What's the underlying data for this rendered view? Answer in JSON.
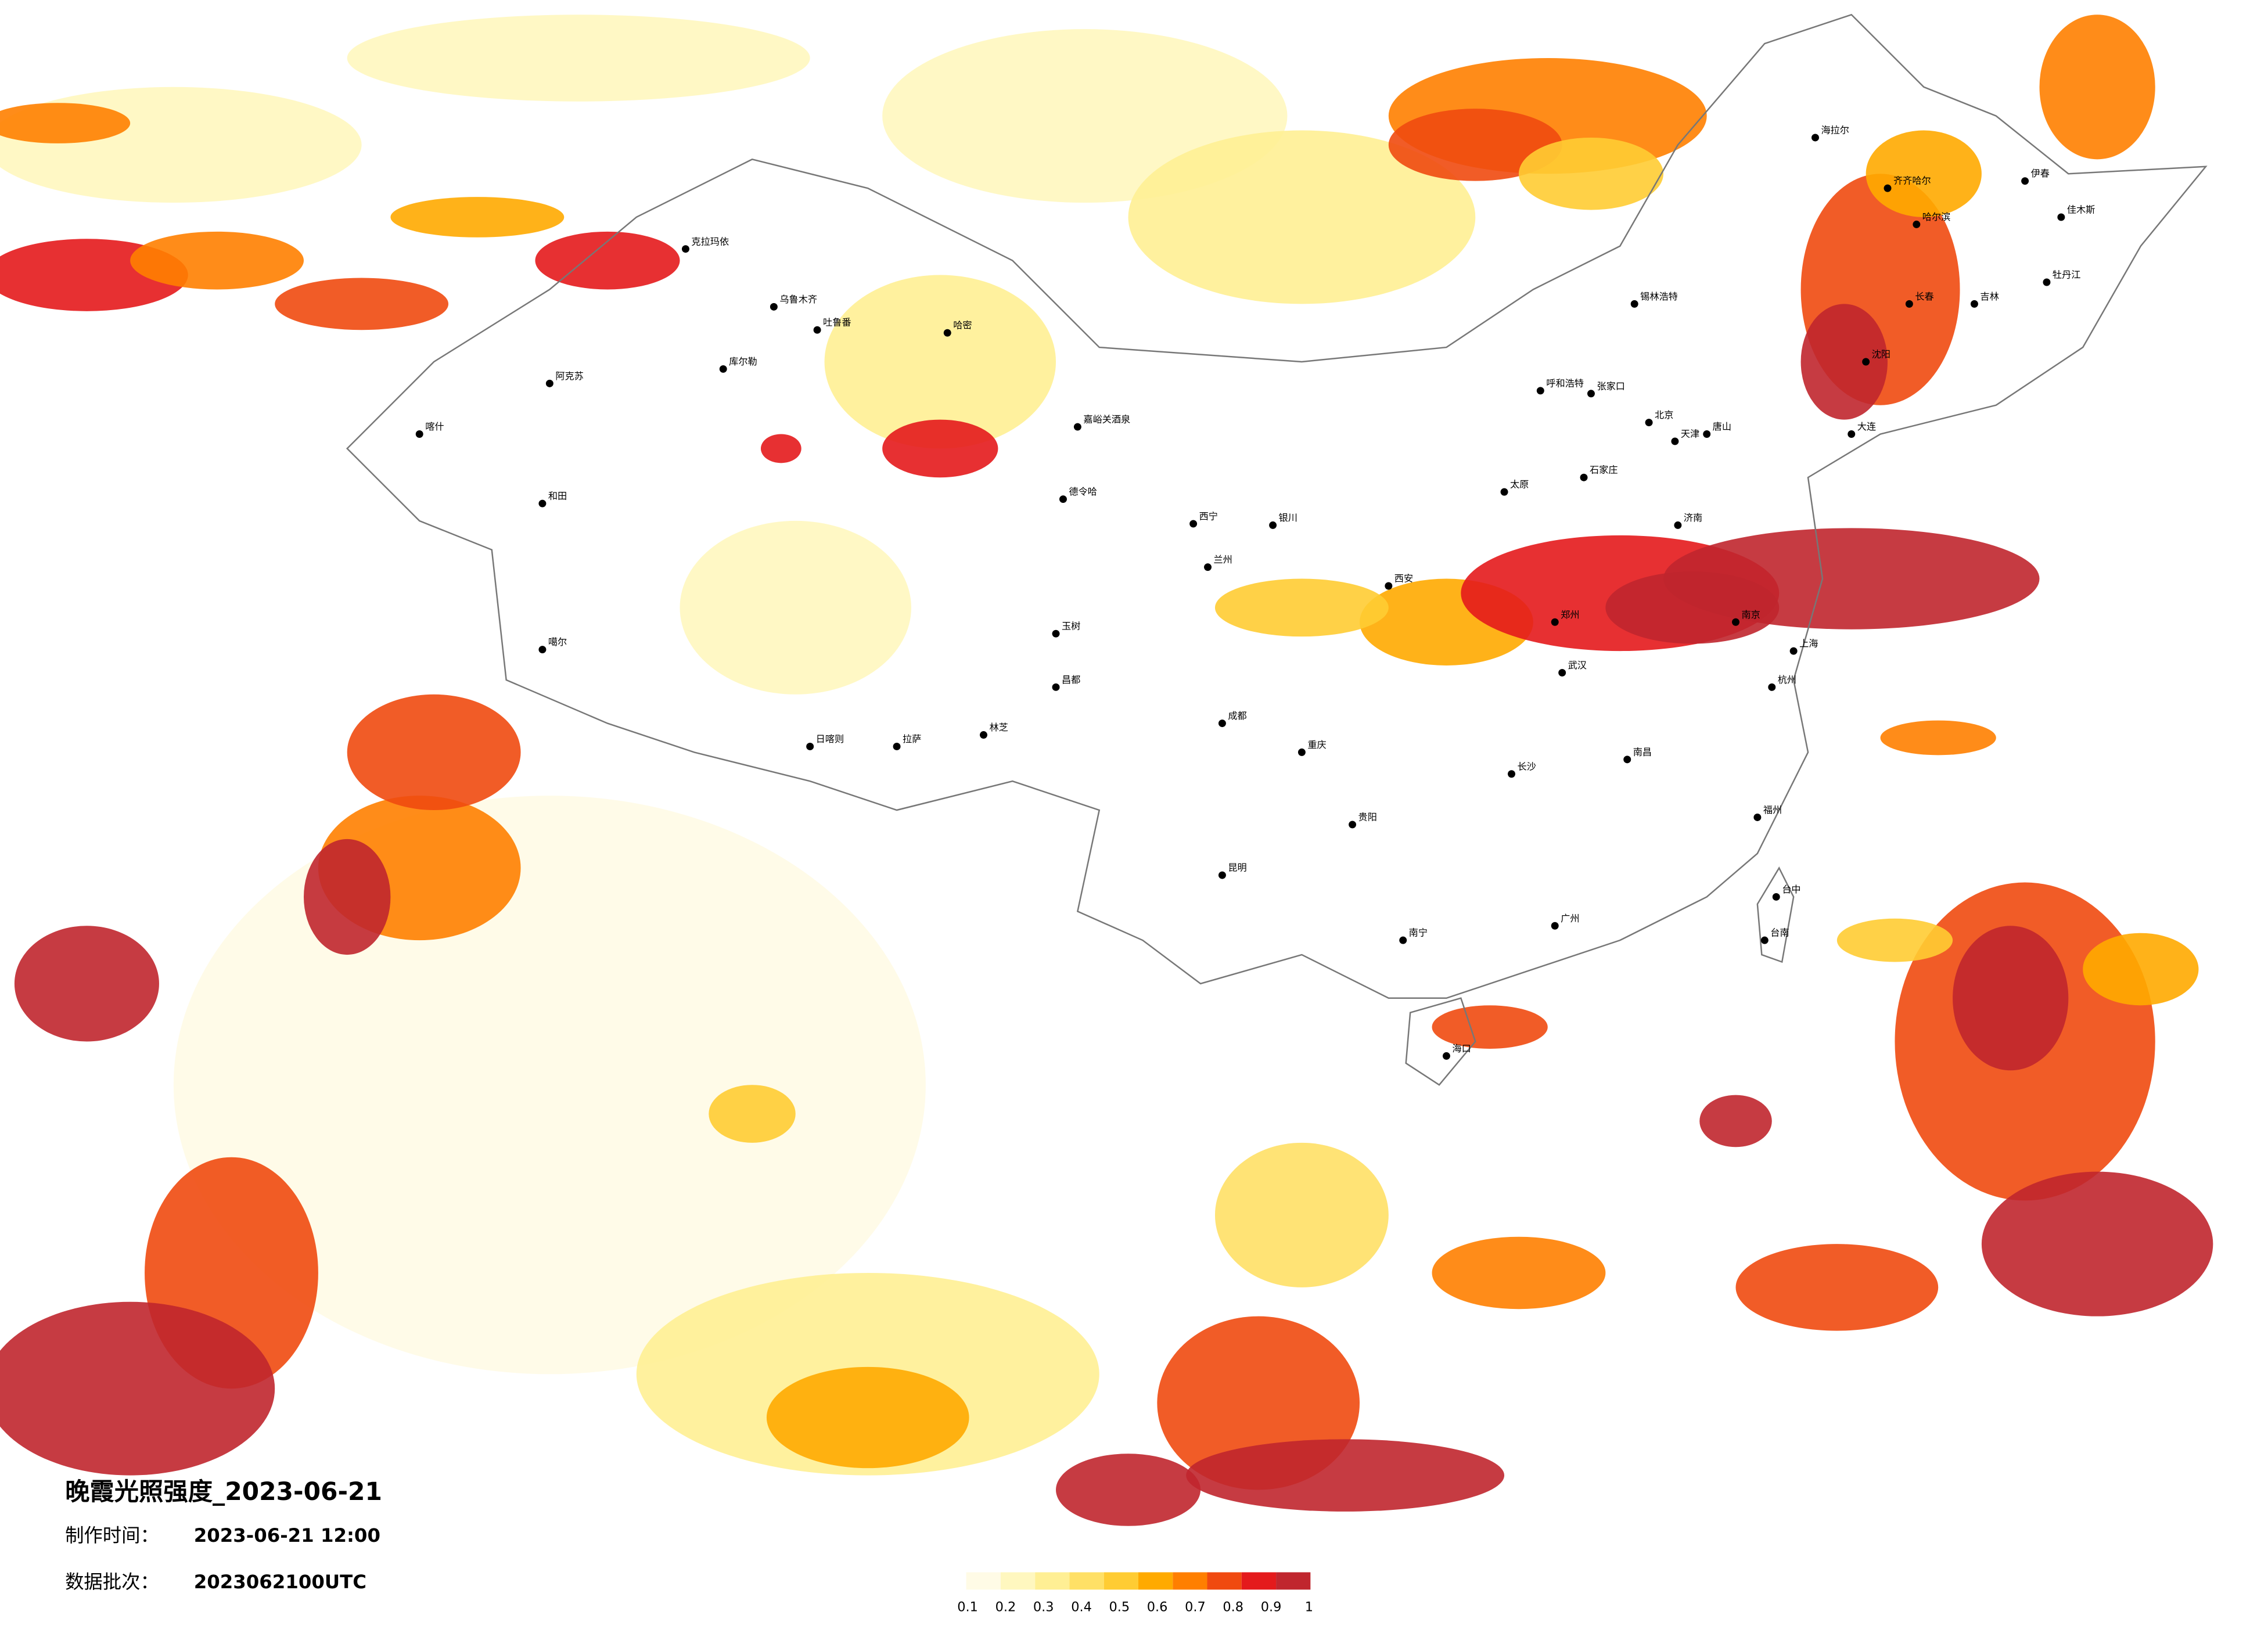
{
  "title": "晚霞光照强度_2023-06-21",
  "made_time": {
    "label": "制作时间：",
    "value": "2023-06-21 12:00"
  },
  "batch": {
    "label": "数据批次：",
    "value": "2023062100UTC"
  },
  "legend": {
    "colors": [
      "#fffbe6",
      "#fff7bf",
      "#ffef94",
      "#ffe066",
      "#ffcc33",
      "#ffaa00",
      "#ff7f00",
      "#f04a10",
      "#e41a1c",
      "#c0262e"
    ],
    "ticks": [
      0.1,
      0.2,
      0.3,
      0.4,
      0.5,
      0.6,
      0.7,
      0.8,
      0.9,
      1
    ]
  },
  "cities": [
    "克拉玛依",
    "乌鲁木齐",
    "吐鲁番",
    "哈密",
    "库尔勒",
    "阿克苏",
    "喀什",
    "和田",
    "嘉峪关酒泉",
    "德令哈",
    "玉树",
    "噶尔",
    "日喀则",
    "拉萨",
    "林芝",
    "昌都",
    "西宁",
    "兰州",
    "银川",
    "呼和浩特",
    "北京",
    "天津",
    "石家庄",
    "太原",
    "济南",
    "郑州",
    "西安",
    "成都",
    "重庆",
    "武汉",
    "南京",
    "上海",
    "杭州",
    "长沙",
    "南昌",
    "福州",
    "贵阳",
    "昆明",
    "南宁",
    "广州",
    "海口",
    "台中",
    "台南",
    "哈尔滨",
    "长春",
    "沈阳",
    "大连",
    "吉林",
    "齐齐哈尔",
    "牡丹江",
    "佳木斯",
    "伊春",
    "海拉尔",
    "锡林浩特",
    "张家口",
    "唐山"
  ]
}
